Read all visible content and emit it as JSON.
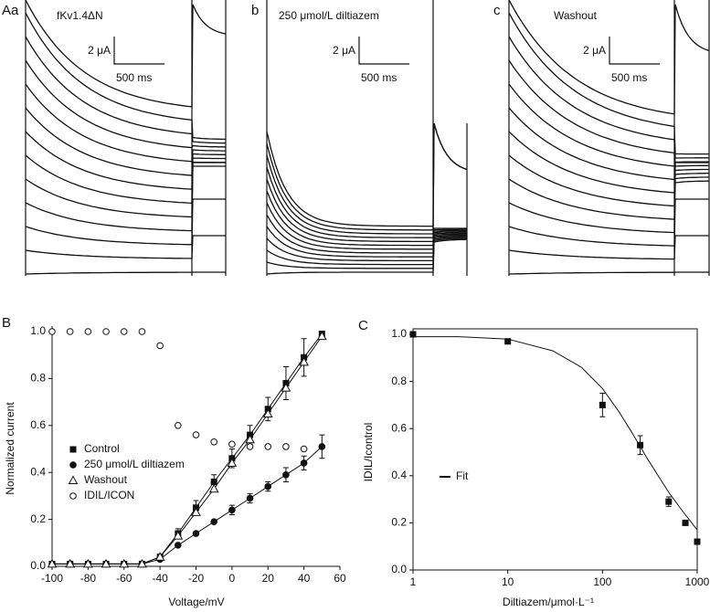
{
  "figure_a": {
    "panels": [
      {
        "label": "Aa",
        "title": "fKv1.4ΔN",
        "scale_current": "2 μA",
        "scale_time": "500 ms"
      },
      {
        "label": "b",
        "title": "250 μmol/L diltiazem",
        "scale_current": "2 μA",
        "scale_time": "500 ms"
      },
      {
        "label": "c",
        "title": "Washout",
        "scale_current": "2 μA",
        "scale_time": "500 ms"
      }
    ]
  },
  "chart_data": [
    {
      "type": "line",
      "panel_label": "B",
      "x_label": "Voltage/mV",
      "y_label": "Normalized current",
      "x": [
        -100,
        -90,
        -80,
        -70,
        -60,
        -50,
        -40,
        -30,
        -20,
        -10,
        0,
        10,
        20,
        30,
        40,
        50
      ],
      "xlim": [
        -100,
        60
      ],
      "xticks": [
        -100,
        -80,
        -60,
        -40,
        -20,
        0,
        20,
        40,
        60
      ],
      "ylim": [
        0,
        1
      ],
      "yticks": [
        {
          "value": 0,
          "label": "0.0"
        },
        0.2,
        0.4,
        0.6,
        0.8,
        {
          "value": 1,
          "label": "1.0"
        }
      ],
      "frame": "axes",
      "series": [
        {
          "name": "Control",
          "color": "#111111",
          "marker": "square",
          "line": true,
          "values": [
            0.01,
            0.01,
            0.01,
            0.01,
            0.01,
            0.01,
            0.04,
            0.14,
            0.25,
            0.36,
            0.46,
            0.56,
            0.67,
            0.78,
            0.89,
            0.99
          ],
          "errors": [
            null,
            null,
            null,
            null,
            null,
            null,
            null,
            0.02,
            0.03,
            0.03,
            0.04,
            0.04,
            0.05,
            0.07,
            0.08,
            0.01
          ]
        },
        {
          "name": "250 μmol/L diltiazem",
          "color": "#111111",
          "marker": "circle",
          "line": true,
          "values": [
            0.01,
            0.01,
            0.01,
            0.01,
            0.01,
            0.01,
            0.03,
            0.09,
            0.14,
            0.19,
            0.24,
            0.29,
            0.34,
            0.39,
            0.44,
            0.51
          ],
          "errors": [
            null,
            null,
            null,
            null,
            null,
            null,
            null,
            null,
            null,
            null,
            0.02,
            0.02,
            0.02,
            0.03,
            0.03,
            0.05
          ]
        },
        {
          "name": "Washout",
          "color": "#111111",
          "marker": "triangle-open",
          "line": true,
          "values": [
            0.01,
            0.01,
            0.01,
            0.01,
            0.01,
            0.01,
            0.04,
            0.13,
            0.23,
            0.33,
            0.44,
            0.54,
            0.65,
            0.76,
            0.87,
            0.98
          ]
        },
        {
          "name": "IDIL/ICON",
          "color": "#111111",
          "marker": "circle-open",
          "line": false,
          "values": [
            1,
            1,
            1,
            1,
            1,
            1,
            0.94,
            0.6,
            0.56,
            0.53,
            0.52,
            0.51,
            0.51,
            0.51,
            0.5,
            null
          ]
        }
      ]
    },
    {
      "type": "line",
      "panel_label": "C",
      "x_label": "Diltiazem/μmol·L⁻¹",
      "y_label": "IDIL/Icontrol",
      "log_x": true,
      "xlim": [
        1,
        1000
      ],
      "xticks": [
        1,
        10,
        100,
        1000
      ],
      "ylim": [
        0,
        1
      ],
      "yticks": [
        {
          "value": 0,
          "label": "0.0"
        },
        0.2,
        0.4,
        0.6,
        0.8,
        {
          "value": 1,
          "label": "1.0"
        }
      ],
      "frame": "box",
      "series": [
        {
          "color": "#111111",
          "marker": "square",
          "line": false,
          "x": [
            1,
            10,
            100,
            250,
            500,
            750,
            1000
          ],
          "values": [
            1,
            0.97,
            0.7,
            0.53,
            0.29,
            0.2,
            0.12
          ],
          "errors": [
            null,
            null,
            0.05,
            0.04,
            0.02,
            null,
            null
          ]
        },
        {
          "name": "Fit",
          "color": "#111111",
          "marker": "none",
          "line": true,
          "x": [
            1,
            3,
            10,
            30,
            60,
            100,
            150,
            200,
            300,
            500,
            700,
            1000
          ],
          "values": [
            0.99,
            0.99,
            0.98,
            0.93,
            0.86,
            0.77,
            0.67,
            0.59,
            0.47,
            0.33,
            0.25,
            0.17
          ]
        }
      ]
    }
  ]
}
